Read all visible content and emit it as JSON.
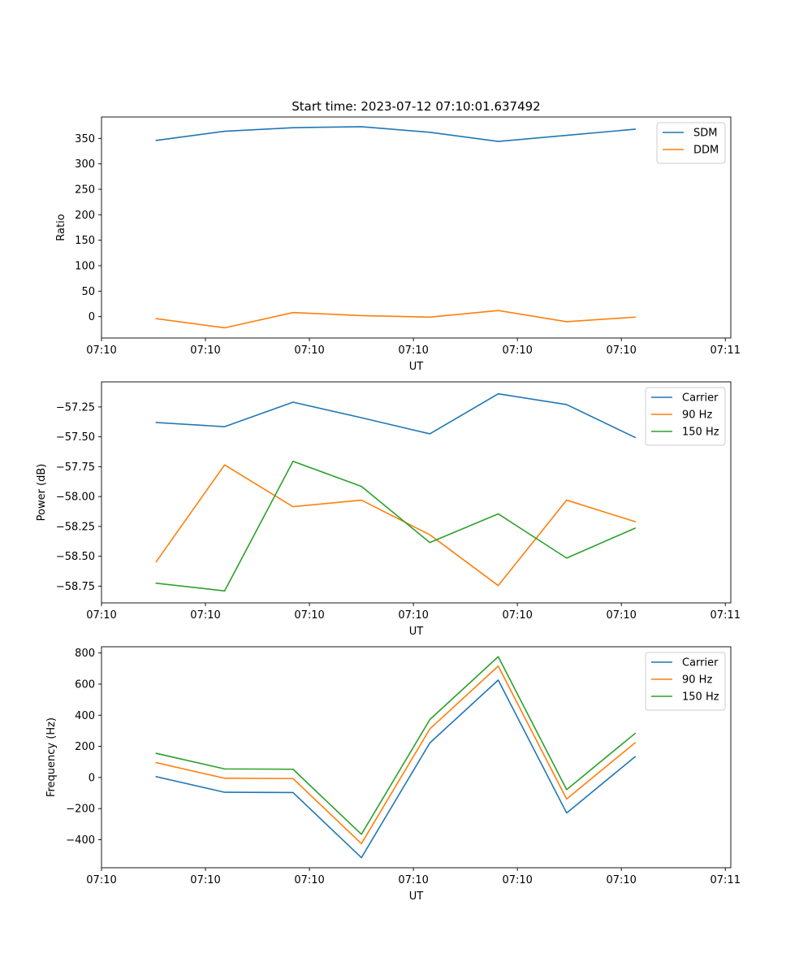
{
  "figure": {
    "title": "Start time: 2023-07-12 07:10:01.637492"
  },
  "colors": {
    "blue": "#1f77b4",
    "orange": "#ff7f0e",
    "green": "#2ca02c"
  },
  "chart_data": [
    {
      "type": "line",
      "title": "Start time: 2023-07-12 07:10:01.637492",
      "xlabel": "UT",
      "ylabel": "Ratio",
      "x": [
        1,
        2,
        3,
        4,
        5,
        6,
        7,
        8
      ],
      "xlim": [
        0.2,
        9.4
      ],
      "xtick_positions": [
        0.2,
        1.72,
        3.24,
        4.76,
        6.28,
        7.8,
        9.32
      ],
      "xtick_labels": [
        "07:10",
        "07:10",
        "07:10",
        "07:10",
        "07:10",
        "07:10",
        "07:11"
      ],
      "ylim": [
        -42,
        392
      ],
      "yticks": [
        0,
        50,
        100,
        150,
        200,
        250,
        300,
        350
      ],
      "ytick_labels": [
        "0",
        "50",
        "100",
        "150",
        "200",
        "250",
        "300",
        "350"
      ],
      "legend_position": "top-right",
      "series": [
        {
          "name": "SDM",
          "color": "#1f77b4",
          "values": [
            346,
            364,
            371,
            373,
            362,
            344,
            356,
            368
          ]
        },
        {
          "name": "DDM",
          "color": "#ff7f0e",
          "values": [
            -4,
            -22,
            8,
            2,
            -1,
            12,
            -10,
            -1
          ]
        }
      ]
    },
    {
      "type": "line",
      "title": "",
      "xlabel": "UT",
      "ylabel": "Power (dB)",
      "x": [
        1,
        2,
        3,
        4,
        5,
        6,
        7,
        8
      ],
      "xlim": [
        0.2,
        9.4
      ],
      "xtick_positions": [
        0.2,
        1.72,
        3.24,
        4.76,
        6.28,
        7.8,
        9.32
      ],
      "xtick_labels": [
        "07:10",
        "07:10",
        "07:10",
        "07:10",
        "07:10",
        "07:10",
        "07:11"
      ],
      "ylim": [
        -58.89,
        -57.04
      ],
      "yticks": [
        -58.75,
        -58.5,
        -58.25,
        -58.0,
        -57.75,
        -57.5,
        -57.25
      ],
      "ytick_labels": [
        "−58.75",
        "−58.50",
        "−58.25",
        "−58.00",
        "−57.75",
        "−57.50",
        "−57.25"
      ],
      "legend_position": "top-right",
      "series": [
        {
          "name": "Carrier",
          "color": "#1f77b4",
          "values": [
            -57.38,
            -57.415,
            -57.21,
            -57.34,
            -57.475,
            -57.14,
            -57.23,
            -57.505
          ]
        },
        {
          "name": "90 Hz",
          "color": "#ff7f0e",
          "values": [
            -58.545,
            -57.735,
            -58.085,
            -58.03,
            -58.32,
            -58.745,
            -58.03,
            -58.21
          ]
        },
        {
          "name": "150 Hz",
          "color": "#2ca02c",
          "values": [
            -58.725,
            -58.79,
            -57.705,
            -57.915,
            -58.385,
            -58.145,
            -58.515,
            -58.265
          ]
        }
      ]
    },
    {
      "type": "line",
      "title": "",
      "xlabel": "UT",
      "ylabel": "Frequency (Hz)",
      "x": [
        1,
        2,
        3,
        4,
        5,
        6,
        7,
        8
      ],
      "xlim": [
        0.2,
        9.4
      ],
      "xtick_positions": [
        0.2,
        1.72,
        3.24,
        4.76,
        6.28,
        7.8,
        9.32
      ],
      "xtick_labels": [
        "07:10",
        "07:10",
        "07:10",
        "07:10",
        "07:10",
        "07:10",
        "07:11"
      ],
      "ylim": [
        -580,
        840
      ],
      "yticks": [
        -400,
        -200,
        0,
        200,
        400,
        600,
        800
      ],
      "ytick_labels": [
        "−400",
        "−200",
        "0",
        "200",
        "400",
        "600",
        "800"
      ],
      "legend_position": "top-right",
      "series": [
        {
          "name": "Carrier",
          "color": "#1f77b4",
          "values": [
            5,
            -95,
            -97,
            -515,
            222,
            626,
            -228,
            133
          ]
        },
        {
          "name": "90 Hz",
          "color": "#ff7f0e",
          "values": [
            95,
            -5,
            -7,
            -425,
            312,
            716,
            -138,
            223
          ]
        },
        {
          "name": "150 Hz",
          "color": "#2ca02c",
          "values": [
            155,
            55,
            53,
            -365,
            372,
            776,
            -78,
            283
          ]
        }
      ]
    }
  ]
}
